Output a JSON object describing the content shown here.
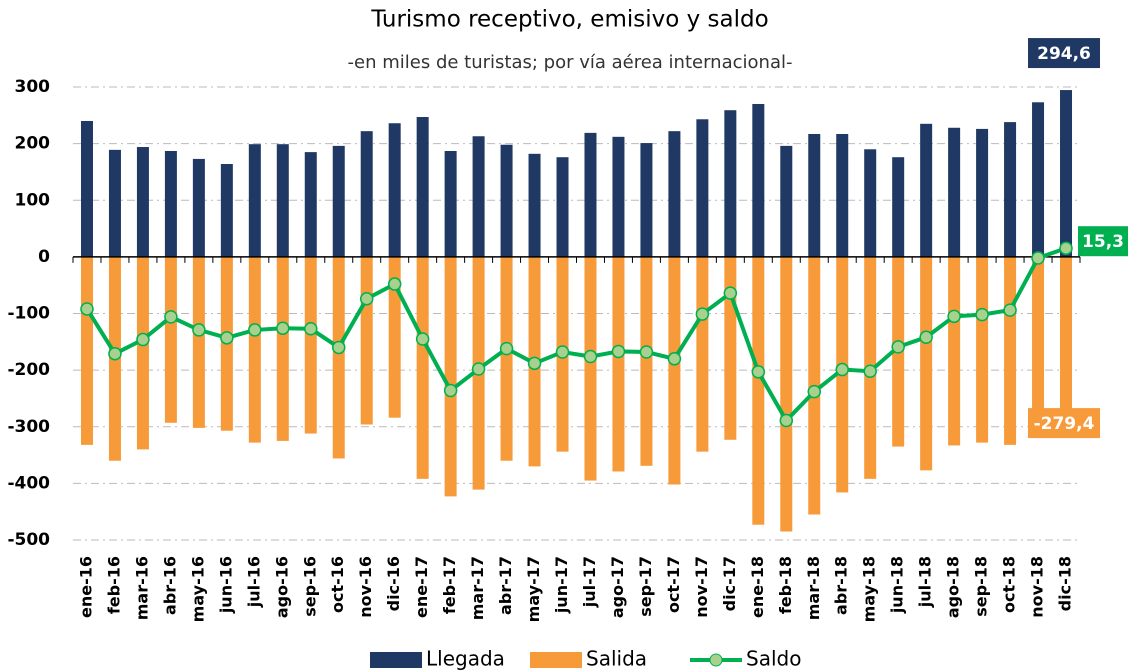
{
  "chart_data": {
    "type": "bar-line",
    "title": "Turismo receptivo, emisivo y saldo",
    "subtitle": "-en miles de turistas; por vía aérea internacional-",
    "categories": [
      "ene-16",
      "feb-16",
      "mar-16",
      "abr-16",
      "may-16",
      "jun-16",
      "jul-16",
      "ago-16",
      "sep-16",
      "oct-16",
      "nov-16",
      "dic-16",
      "ene-17",
      "feb-17",
      "mar-17",
      "abr-17",
      "may-17",
      "jun-17",
      "jul-17",
      "ago-17",
      "sep-17",
      "oct-17",
      "nov-17",
      "dic-17",
      "ene-18",
      "feb-18",
      "mar-18",
      "abr-18",
      "may-18",
      "jun-18",
      "jul-18",
      "ago-18",
      "sep-18",
      "oct-18",
      "nov-18",
      "dic-18"
    ],
    "series": [
      {
        "name": "Llegada",
        "type": "bar",
        "color": "#1f3864",
        "values": [
          240,
          189,
          194,
          187,
          173,
          164,
          199,
          199,
          185,
          196,
          222,
          236,
          247,
          187,
          213,
          198,
          182,
          176,
          219,
          212,
          201,
          222,
          243,
          259,
          270,
          196,
          217,
          217,
          190,
          176,
          235,
          228,
          226,
          238,
          273,
          294.6
        ],
        "value_labels": [
          null,
          null,
          null,
          null,
          null,
          null,
          null,
          null,
          null,
          null,
          null,
          null,
          null,
          null,
          null,
          null,
          null,
          null,
          null,
          null,
          null,
          null,
          null,
          null,
          null,
          null,
          null,
          null,
          null,
          null,
          null,
          null,
          null,
          null,
          null,
          "294,6"
        ]
      },
      {
        "name": "Salida",
        "type": "bar",
        "color": "#f79a3a",
        "values": [
          -332,
          -360,
          -340,
          -293,
          -302,
          -307,
          -328,
          -325,
          -312,
          -356,
          -296,
          -284,
          -392,
          -423,
          -411,
          -360,
          -370,
          -344,
          -395,
          -379,
          -369,
          -402,
          -344,
          -323,
          -473,
          -485,
          -455,
          -416,
          -392,
          -335,
          -377,
          -333,
          -328,
          -332,
          -275,
          -279.4
        ],
        "value_labels": [
          null,
          null,
          null,
          null,
          null,
          null,
          null,
          null,
          null,
          null,
          null,
          null,
          null,
          null,
          null,
          null,
          null,
          null,
          null,
          null,
          null,
          null,
          null,
          null,
          null,
          null,
          null,
          null,
          null,
          null,
          null,
          null,
          null,
          null,
          null,
          "-279,4"
        ]
      },
      {
        "name": "Saldo",
        "type": "line",
        "color": "#00b050",
        "marker_color": "#a9d18e",
        "values": [
          -92,
          -171,
          -146,
          -106,
          -129,
          -143,
          -129,
          -126,
          -127,
          -160,
          -74,
          -48,
          -145,
          -236,
          -198,
          -162,
          -188,
          -168,
          -176,
          -167,
          -168,
          -180,
          -101,
          -64,
          -203,
          -289,
          -238,
          -199,
          -202,
          -159,
          -142,
          -105,
          -102,
          -94,
          -2,
          15.3
        ],
        "value_labels": [
          null,
          null,
          null,
          null,
          null,
          null,
          null,
          null,
          null,
          null,
          null,
          null,
          null,
          null,
          null,
          null,
          null,
          null,
          null,
          null,
          null,
          null,
          null,
          null,
          null,
          null,
          null,
          null,
          null,
          null,
          null,
          null,
          null,
          null,
          null,
          "15,3"
        ]
      }
    ],
    "ylim": [
      -500,
      300
    ],
    "yticks": [
      -500,
      -400,
      -300,
      -200,
      -100,
      0,
      100,
      200,
      300
    ],
    "grid": true,
    "legend": "bottom"
  }
}
